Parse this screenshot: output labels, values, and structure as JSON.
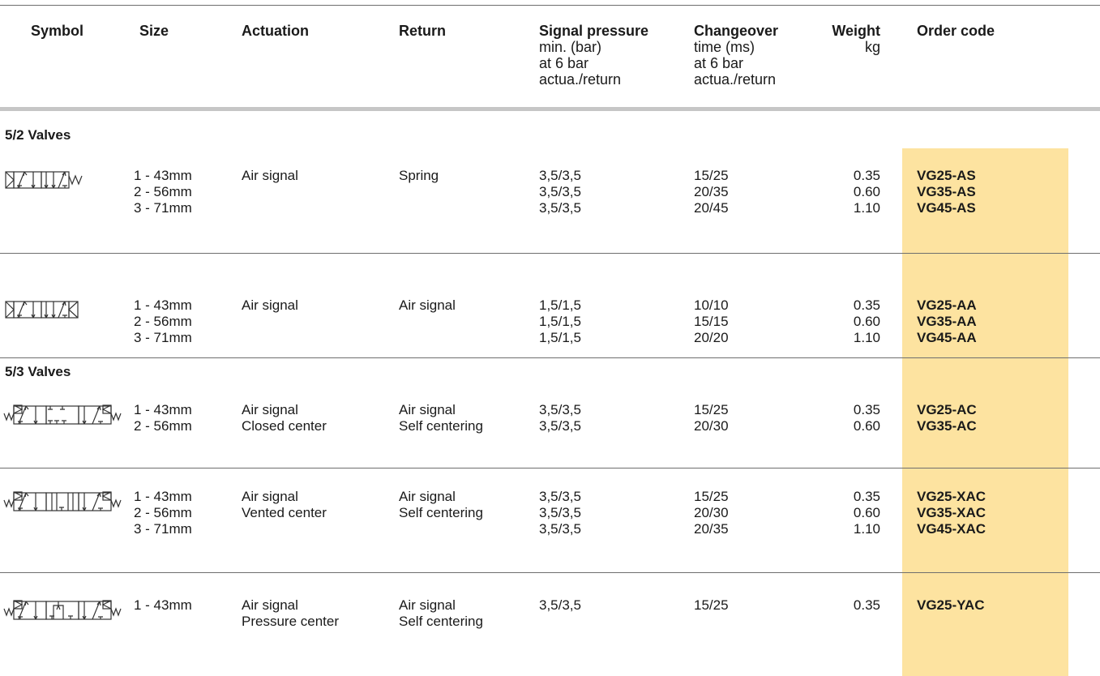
{
  "headers": {
    "symbol": "Symbol",
    "size": "Size",
    "actuation": "Actuation",
    "return": "Return",
    "signal_pressure": {
      "title": "Signal pressure",
      "sub": [
        "min. (bar)",
        "at 6 bar",
        "actua./return"
      ]
    },
    "changeover": {
      "title": "Changeover",
      "sub": [
        "time (ms)",
        "at 6 bar",
        "actua./return"
      ]
    },
    "weight": {
      "title": "Weight",
      "sub": [
        "kg"
      ]
    },
    "order_code": "Order code"
  },
  "sections": [
    {
      "title": "5/2 Valves",
      "rows": [
        {
          "symbol": "5/2 valve air signal spring return symbol",
          "sizes": [
            "1 - 43mm",
            "2 - 56mm",
            "3 - 71mm"
          ],
          "actuation": [
            "Air signal"
          ],
          "return": [
            "Spring"
          ],
          "signal_pressure": [
            "3,5/3,5",
            "3,5/3,5",
            "3,5/3,5"
          ],
          "changeover": [
            "15/25",
            "20/35",
            "20/45"
          ],
          "weight": [
            "0.35",
            "0.60",
            "1.10"
          ],
          "order_codes": [
            "VG25-AS",
            "VG35-AS",
            "VG45-AS"
          ]
        },
        {
          "symbol": "5/2 valve air signal air return symbol",
          "sizes": [
            "1 - 43mm",
            "2 - 56mm",
            "3 - 71mm"
          ],
          "actuation": [
            "Air signal"
          ],
          "return": [
            "Air signal"
          ],
          "signal_pressure": [
            "1,5/1,5",
            "1,5/1,5",
            "1,5/1,5"
          ],
          "changeover": [
            "10/10",
            "15/15",
            "20/20"
          ],
          "weight": [
            "0.35",
            "0.60",
            "1.10"
          ],
          "order_codes": [
            "VG25-AA",
            "VG35-AA",
            "VG45-AA"
          ]
        }
      ]
    },
    {
      "title": "5/3 Valves",
      "rows": [
        {
          "symbol": "5/3 valve closed center symbol",
          "sizes": [
            "1 - 43mm",
            "2 - 56mm"
          ],
          "actuation": [
            "Air signal",
            "Closed center"
          ],
          "return": [
            "Air signal",
            "Self centering"
          ],
          "signal_pressure": [
            "3,5/3,5",
            "3,5/3,5"
          ],
          "changeover": [
            "15/25",
            "20/30"
          ],
          "weight": [
            "0.35",
            "0.60"
          ],
          "order_codes": [
            "VG25-AC",
            "VG35-AC"
          ]
        },
        {
          "symbol": "5/3 valve vented center symbol",
          "sizes": [
            "1 - 43mm",
            "2 - 56mm",
            "3 - 71mm"
          ],
          "actuation": [
            "Air signal",
            "Vented center"
          ],
          "return": [
            "Air signal",
            "Self centering"
          ],
          "signal_pressure": [
            "3,5/3,5",
            "3,5/3,5",
            "3,5/3,5"
          ],
          "changeover": [
            "15/25",
            "20/30",
            "20/35"
          ],
          "weight": [
            "0.35",
            "0.60",
            "1.10"
          ],
          "order_codes": [
            "VG25-XAC",
            "VG35-XAC",
            "VG45-XAC"
          ]
        },
        {
          "symbol": "5/3 valve pressure center symbol",
          "sizes": [
            "1 - 43mm"
          ],
          "actuation": [
            "Air signal",
            "Pressure center"
          ],
          "return": [
            "Air signal",
            "Self centering"
          ],
          "signal_pressure": [
            "3,5/3,5"
          ],
          "changeover": [
            "15/25"
          ],
          "weight": [
            "0.35"
          ],
          "order_codes": [
            "VG25-YAC"
          ]
        }
      ]
    }
  ],
  "colors": {
    "highlight": "#fde3a0",
    "rule": "#6e6e6e",
    "thick_rule": "#c6c6c6",
    "text": "#1a1a1a"
  }
}
